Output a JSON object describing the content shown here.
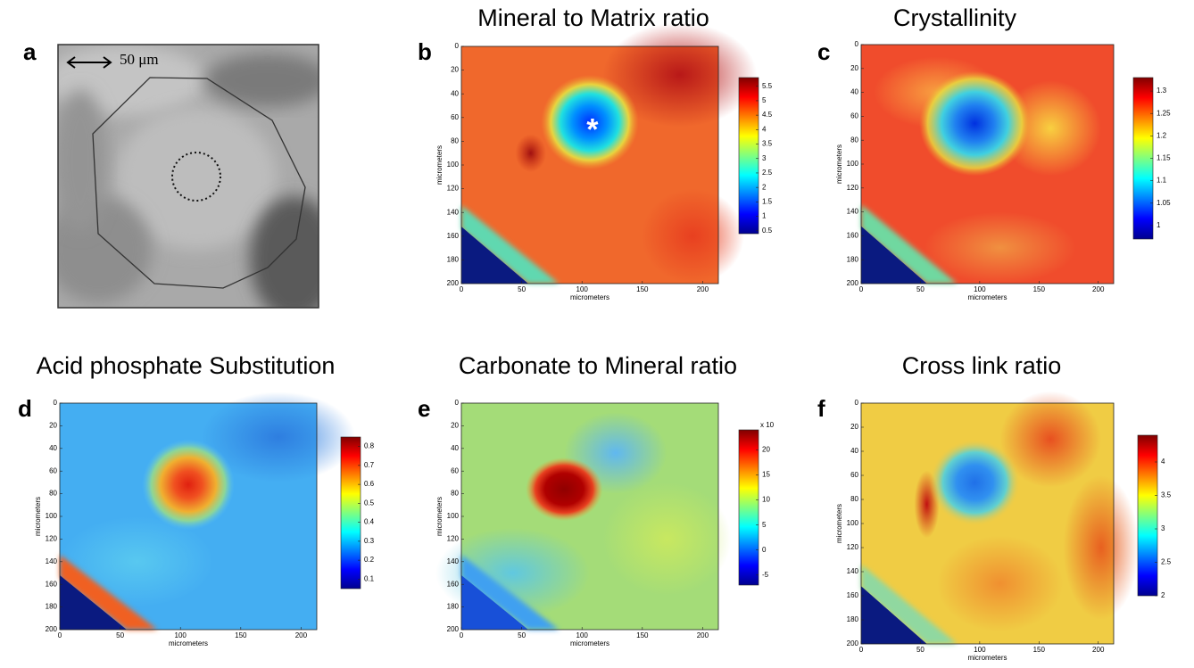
{
  "panels": [
    {
      "label": "a",
      "scale_bar": "50 μm"
    },
    {
      "label": "b",
      "title": "Mineral to Matrix ratio",
      "marker": "*",
      "xlabel": "micrometers",
      "ylabel": "micrometers",
      "xlim": [
        0,
        213
      ],
      "ylim": [
        200,
        0
      ],
      "xticks": [
        0,
        50,
        100,
        150,
        200
      ],
      "yticks": [
        0,
        20,
        40,
        60,
        80,
        100,
        120,
        140,
        160,
        180,
        200
      ],
      "clim": [
        0.4,
        5.8
      ],
      "cticks": [
        0.5,
        1,
        1.5,
        2,
        2.5,
        3,
        3.5,
        4,
        4.5,
        5,
        5.5
      ]
    },
    {
      "label": "c",
      "title": "Crystallinity",
      "xlabel": "micrometers",
      "ylabel": "micrometers",
      "xlim": [
        0,
        213
      ],
      "ylim": [
        200,
        0
      ],
      "xticks": [
        0,
        50,
        100,
        150,
        200
      ],
      "yticks": [
        0,
        20,
        40,
        60,
        80,
        100,
        120,
        140,
        160,
        180,
        200
      ],
      "clim": [
        0.97,
        1.33
      ],
      "cticks": [
        1,
        1.05,
        1.1,
        1.15,
        1.2,
        1.25,
        1.3
      ]
    },
    {
      "label": "d",
      "title": "Acid phosphate Substitution",
      "xlabel": "micrometers",
      "ylabel": "micrometers",
      "xlim": [
        0,
        213
      ],
      "ylim": [
        200,
        0
      ],
      "xticks": [
        0,
        50,
        100,
        150,
        200
      ],
      "yticks": [
        0,
        20,
        40,
        60,
        80,
        100,
        120,
        140,
        160,
        180,
        200
      ],
      "clim": [
        0.05,
        0.85
      ],
      "cticks": [
        0.1,
        0.2,
        0.3,
        0.4,
        0.5,
        0.6,
        0.7,
        0.8
      ]
    },
    {
      "label": "e",
      "title": "Carbonate to Mineral ratio",
      "xlabel": "micrometers",
      "ylabel": "micrometers",
      "xlim": [
        0,
        213
      ],
      "ylim": [
        200,
        0
      ],
      "xticks": [
        0,
        50,
        100,
        150,
        200
      ],
      "yticks": [
        0,
        20,
        40,
        60,
        80,
        100,
        120,
        140,
        160,
        180,
        200
      ],
      "clim": [
        -7,
        24
      ],
      "cticks": [
        -5,
        0,
        5,
        10,
        15,
        20
      ],
      "cmultiplier": "x 10"
    },
    {
      "label": "f",
      "title": "Cross link ratio",
      "xlabel": "micrometers",
      "ylabel": "micrometers",
      "xlim": [
        0,
        213
      ],
      "ylim": [
        200,
        0
      ],
      "xticks": [
        0,
        50,
        100,
        150,
        200
      ],
      "yticks": [
        0,
        20,
        40,
        60,
        80,
        100,
        120,
        140,
        160,
        180,
        200
      ],
      "clim": [
        2,
        4.4
      ],
      "cticks": [
        2,
        2.5,
        3,
        3.5,
        4
      ]
    }
  ]
}
